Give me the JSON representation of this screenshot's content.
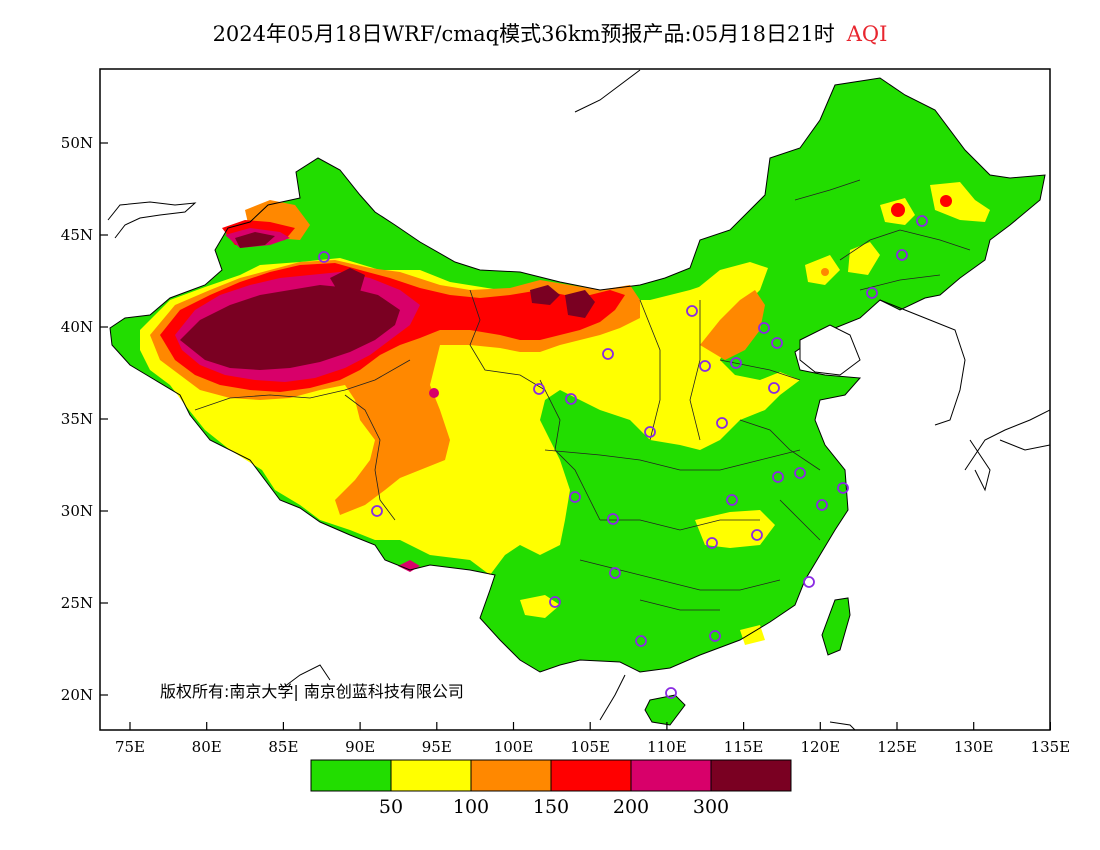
{
  "header": {
    "title": "2024年05月18日WRF/cmaq模式36km预报产品:05月18日21时",
    "variable": "AQI",
    "variable_color": "#e8262f"
  },
  "axes": {
    "x_ticks": [
      "75E",
      "80E",
      "85E",
      "90E",
      "95E",
      "100E",
      "105E",
      "110E",
      "115E",
      "120E",
      "125E",
      "130E",
      "135E"
    ],
    "y_ticks": [
      "50N",
      "45N",
      "40N",
      "35N",
      "30N",
      "25N",
      "20N"
    ]
  },
  "legend": {
    "colors": [
      "#22dd00",
      "#ffff00",
      "#ff8800",
      "#ff0000",
      "#d8006a",
      "#7a0022"
    ],
    "labels": [
      "50",
      "100",
      "150",
      "200",
      "300"
    ]
  },
  "copyright": "版权所有:南京大学| 南京创蓝科技有限公司",
  "palette": {
    "good": "#22dd00",
    "moderate": "#ffff00",
    "unhealthy_sensitive": "#ff8800",
    "unhealthy": "#ff0000",
    "very_unhealthy": "#d8006a",
    "hazardous": "#7a0022",
    "station_marker": "#8a2be2"
  }
}
